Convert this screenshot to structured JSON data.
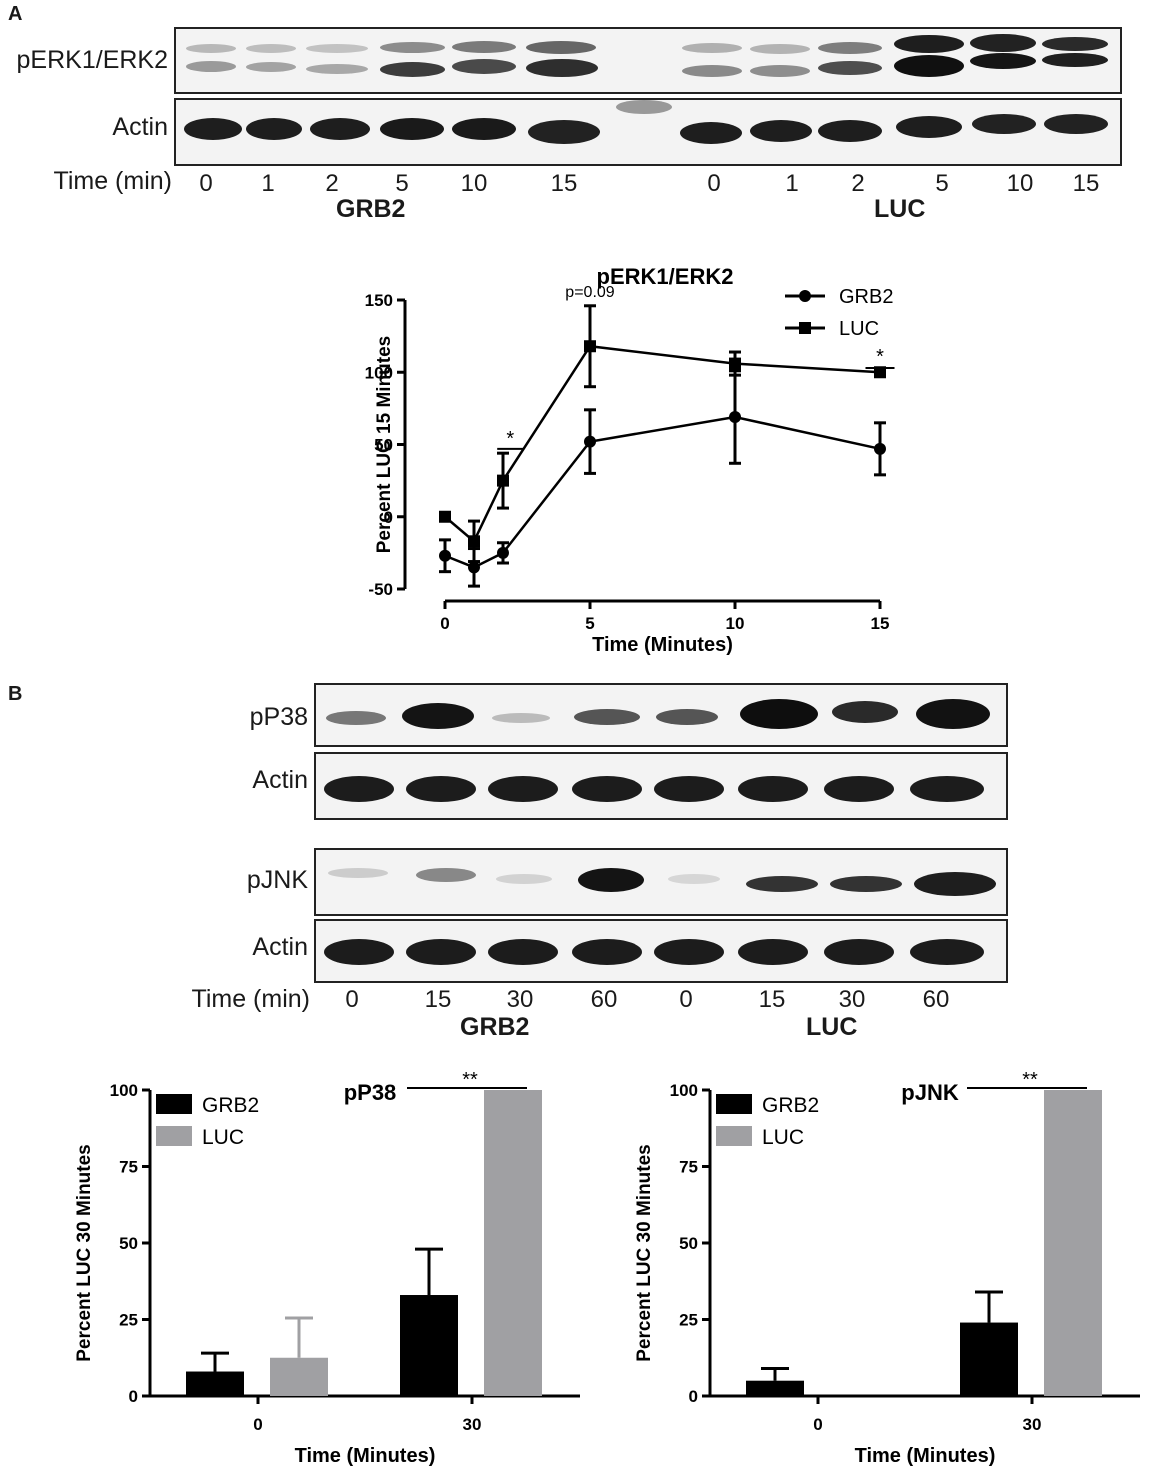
{
  "panels": {
    "a": "A",
    "b": "B"
  },
  "blot_a": {
    "row_labels": [
      "pERK1/ERK2",
      "Actin"
    ],
    "time_label": "Time (min)",
    "times": [
      "0",
      "1",
      "2",
      "5",
      "10",
      "15",
      "0",
      "1",
      "2",
      "5",
      "10",
      "15"
    ],
    "groups": [
      "GRB2",
      "LUC"
    ]
  },
  "blot_b": {
    "row_labels": [
      "pP38",
      "Actin",
      "pJNK",
      "Actin"
    ],
    "time_label": "Time (min)",
    "times": [
      "0",
      "15",
      "30",
      "60",
      "0",
      "15",
      "30",
      "60"
    ],
    "groups": [
      "GRB2",
      "LUC"
    ]
  },
  "chart_data": [
    {
      "type": "line",
      "title": "pERK1/ERK2",
      "xlabel": "Time (Minutes)",
      "ylabel": "Percent LUC 15 Minutes",
      "x": [
        0,
        1,
        2,
        5,
        10,
        15
      ],
      "xticks": [
        "0",
        "5",
        "10",
        "15"
      ],
      "yticks": [
        "-50",
        "0",
        "50",
        "100",
        "150"
      ],
      "xlim": [
        0,
        15
      ],
      "ylim": [
        -50,
        150
      ],
      "legend_position": "top-right",
      "series": [
        {
          "name": "GRB2",
          "marker": "circle",
          "values": [
            -27,
            -35,
            -25,
            52,
            69,
            47
          ],
          "errors": [
            11,
            13,
            7,
            22,
            32,
            18
          ]
        },
        {
          "name": "LUC",
          "marker": "square",
          "values": [
            0,
            -17,
            25,
            118,
            106,
            100
          ],
          "errors": [
            0,
            14,
            19,
            28,
            8,
            0
          ]
        }
      ],
      "annotations": [
        {
          "text": "*",
          "x_from": 1.8,
          "x_to": 2.7,
          "y": 47
        },
        {
          "text": "p=0.09",
          "x": 5,
          "y": 152
        },
        {
          "text": "*",
          "x_from": 14.5,
          "x_to": 15.5,
          "y": 105
        }
      ]
    },
    {
      "type": "bar",
      "title": "pP38",
      "xlabel": "Time (Minutes)",
      "ylabel": "Percent LUC 30 Minutes",
      "categories": [
        "0",
        "30"
      ],
      "yticks": [
        "0",
        "25",
        "50",
        "75",
        "100"
      ],
      "ylim": [
        0,
        100
      ],
      "legend_position": "top-left",
      "series": [
        {
          "name": "GRB2",
          "color": "#000000",
          "values": [
            8,
            33
          ],
          "errors": [
            6,
            15
          ]
        },
        {
          "name": "LUC",
          "color": "#a0a0a3",
          "values": [
            12.5,
            100
          ],
          "errors": [
            13,
            0
          ]
        }
      ],
      "annotations": [
        {
          "text": "**",
          "from": "GRB2@30",
          "to": "LUC@30",
          "y": 100
        }
      ]
    },
    {
      "type": "bar",
      "title": "pJNK",
      "xlabel": "Time (Minutes)",
      "ylabel": "Percent LUC 30 Minutes",
      "categories": [
        "0",
        "30"
      ],
      "yticks": [
        "0",
        "25",
        "50",
        "75",
        "100"
      ],
      "ylim": [
        0,
        100
      ],
      "legend_position": "top-left",
      "series": [
        {
          "name": "GRB2",
          "color": "#000000",
          "values": [
            5,
            24
          ],
          "errors": [
            4,
            10
          ]
        },
        {
          "name": "LUC",
          "color": "#a0a0a3",
          "values": [
            0,
            100
          ],
          "errors": [
            0,
            0
          ]
        }
      ],
      "annotations": [
        {
          "text": "**",
          "from": "GRB2@30",
          "to": "LUC@30",
          "y": 100
        }
      ]
    }
  ]
}
